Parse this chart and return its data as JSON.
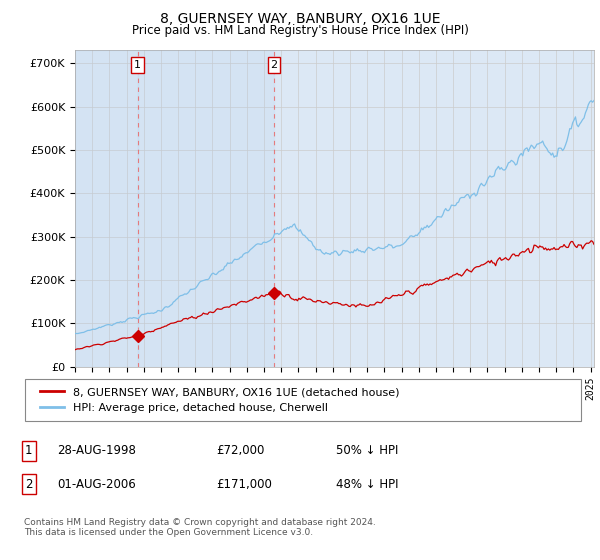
{
  "title": "8, GUERNSEY WAY, BANBURY, OX16 1UE",
  "subtitle": "Price paid vs. HM Land Registry's House Price Index (HPI)",
  "hpi_color": "#7fbfe8",
  "price_color": "#cc0000",
  "background_color": "#dce8f5",
  "plot_bg": "#ffffff",
  "ylim": [
    0,
    730000
  ],
  "yticks": [
    0,
    100000,
    200000,
    300000,
    400000,
    500000,
    600000,
    700000
  ],
  "legend_label_price": "8, GUERNSEY WAY, BANBURY, OX16 1UE (detached house)",
  "legend_label_hpi": "HPI: Average price, detached house, Cherwell",
  "transaction1_date": "28-AUG-1998",
  "transaction1_price": "£72,000",
  "transaction1_pct": "50% ↓ HPI",
  "transaction1_x": 1998.65,
  "transaction1_y": 72000,
  "transaction2_date": "01-AUG-2006",
  "transaction2_price": "£171,000",
  "transaction2_pct": "48% ↓ HPI",
  "transaction2_x": 2006.58,
  "transaction2_y": 171000,
  "footer": "Contains HM Land Registry data © Crown copyright and database right 2024.\nThis data is licensed under the Open Government Licence v3.0.",
  "xmin": 1995.0,
  "xmax": 2025.2
}
